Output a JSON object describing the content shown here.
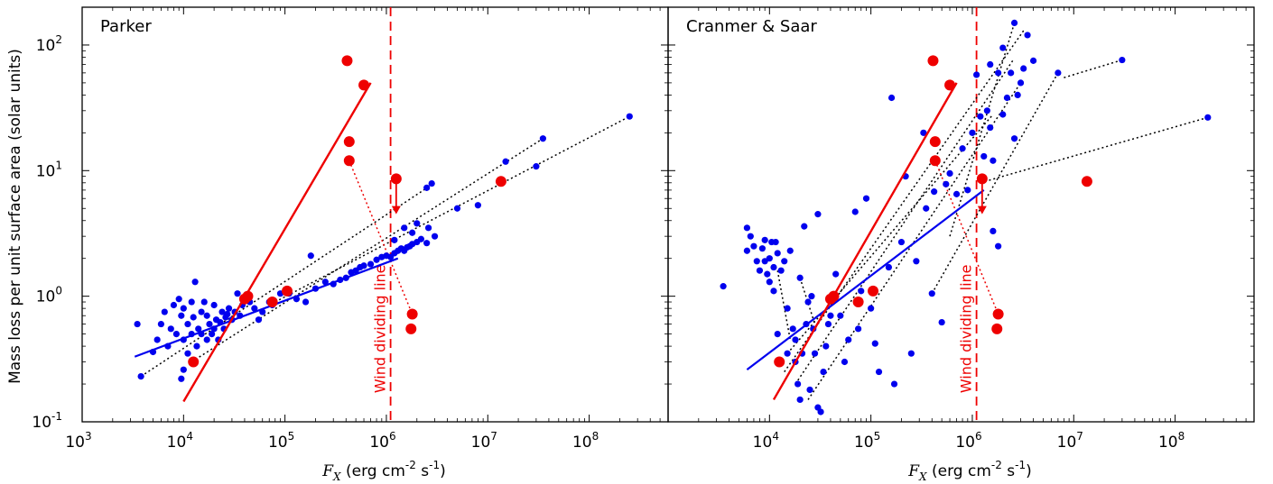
{
  "figure": {
    "ylabel": "Mass loss per unit surface area (solar units)",
    "annotation": "Wind dividing line"
  },
  "chart_data": [
    {
      "type": "scatter",
      "title": "Parker",
      "xscale": "log",
      "yscale": "log",
      "xlim": [
        1000,
        600000000
      ],
      "ylim": [
        0.1,
        200
      ],
      "xticks": [
        {
          "v": 1000,
          "m": "10",
          "e": "3"
        },
        {
          "v": 10000,
          "m": "10",
          "e": "4"
        },
        {
          "v": 100000,
          "m": "10",
          "e": "5"
        },
        {
          "v": 1000000,
          "m": "10",
          "e": "6"
        },
        {
          "v": 10000000,
          "m": "10",
          "e": "7"
        },
        {
          "v": 100000000,
          "m": "10",
          "e": "8"
        }
      ],
      "yticks": [
        {
          "v": 0.1,
          "m": "10",
          "e": "-1"
        },
        {
          "v": 1,
          "m": "10",
          "e": "0"
        },
        {
          "v": 10,
          "m": "10",
          "e": "1"
        },
        {
          "v": 100,
          "m": "10",
          "e": "2"
        }
      ],
      "xlabel": {
        "math": "F",
        "sub": "X",
        "text": " (erg cm",
        "sup1": "-2",
        "mid": " s",
        "sup2": "-1",
        "end": ")"
      },
      "ylabel": "Mass loss per unit surface area (solar units)",
      "wind_dividing_line_x": 1100000,
      "blue_points": [
        [
          3500,
          0.6
        ],
        [
          3800,
          0.23
        ],
        [
          5000,
          0.36
        ],
        [
          5500,
          0.45
        ],
        [
          6000,
          0.6
        ],
        [
          6500,
          0.75
        ],
        [
          7000,
          0.4
        ],
        [
          7500,
          0.55
        ],
        [
          8000,
          0.85
        ],
        [
          8500,
          0.5
        ],
        [
          9000,
          0.95
        ],
        [
          9500,
          0.7
        ],
        [
          9500,
          0.22
        ],
        [
          10000,
          0.26
        ],
        [
          10000,
          0.45
        ],
        [
          10000,
          0.8
        ],
        [
          11000,
          0.6
        ],
        [
          11000,
          0.35
        ],
        [
          12000,
          0.5
        ],
        [
          12000,
          0.9
        ],
        [
          12500,
          0.68
        ],
        [
          13000,
          1.3
        ],
        [
          13500,
          0.4
        ],
        [
          14000,
          0.55
        ],
        [
          15000,
          0.75
        ],
        [
          15000,
          0.5
        ],
        [
          16000,
          0.9
        ],
        [
          17000,
          0.45
        ],
        [
          17000,
          0.7
        ],
        [
          18000,
          0.6
        ],
        [
          19000,
          0.5
        ],
        [
          20000,
          0.55
        ],
        [
          20000,
          0.85
        ],
        [
          21000,
          0.65
        ],
        [
          22000,
          0.45
        ],
        [
          23000,
          0.62
        ],
        [
          24000,
          0.75
        ],
        [
          25000,
          0.55
        ],
        [
          26000,
          0.68
        ],
        [
          27000,
          0.72
        ],
        [
          28000,
          0.8
        ],
        [
          30000,
          0.65
        ],
        [
          32000,
          0.75
        ],
        [
          34000,
          1.05
        ],
        [
          36000,
          0.7
        ],
        [
          38000,
          0.85
        ],
        [
          40000,
          0.95
        ],
        [
          45000,
          0.9
        ],
        [
          50000,
          0.8
        ],
        [
          55000,
          0.65
        ],
        [
          60000,
          0.75
        ],
        [
          70000,
          0.9
        ],
        [
          75000,
          0.85
        ],
        [
          90000,
          1.05
        ],
        [
          110000,
          1.05
        ],
        [
          130000,
          0.95
        ],
        [
          160000,
          0.9
        ],
        [
          180000,
          2.1
        ],
        [
          200000,
          1.15
        ],
        [
          250000,
          1.3
        ],
        [
          300000,
          1.25
        ],
        [
          350000,
          1.35
        ],
        [
          400000,
          1.4
        ],
        [
          450000,
          1.55
        ],
        [
          500000,
          1.6
        ],
        [
          550000,
          1.7
        ],
        [
          600000,
          1.75
        ],
        [
          700000,
          1.8
        ],
        [
          800000,
          1.95
        ],
        [
          900000,
          2.05
        ],
        [
          1000000,
          2.1
        ],
        [
          1100000,
          2.05
        ],
        [
          1200000,
          2.2
        ],
        [
          1300000,
          2.3
        ],
        [
          1400000,
          2.4
        ],
        [
          1500000,
          2.3
        ],
        [
          1600000,
          2.45
        ],
        [
          1700000,
          2.5
        ],
        [
          1800000,
          2.6
        ],
        [
          2000000,
          2.7
        ],
        [
          2200000,
          2.85
        ],
        [
          2500000,
          2.65
        ],
        [
          1500000,
          3.5
        ],
        [
          1800000,
          3.2
        ],
        [
          2000000,
          3.8
        ],
        [
          1200000,
          2.8
        ],
        [
          2500000,
          7.3
        ],
        [
          2800000,
          7.9
        ],
        [
          2600000,
          3.5
        ],
        [
          3000000,
          3.0
        ],
        [
          5000000,
          5.0
        ],
        [
          8000000,
          5.3
        ],
        [
          15000000,
          11.8
        ],
        [
          14000000,
          8.2
        ],
        [
          30000000,
          10.8
        ],
        [
          35000000,
          18.0
        ],
        [
          250000000,
          27.0
        ]
      ],
      "red_points": [
        [
          12500,
          0.3
        ],
        [
          40000,
          0.95
        ],
        [
          43000,
          1.0
        ],
        [
          75000,
          0.9
        ],
        [
          105000,
          1.1
        ],
        [
          410000,
          75
        ],
        [
          600000,
          48
        ],
        [
          430000,
          17
        ],
        [
          430000,
          12
        ],
        [
          1800000,
          0.72
        ],
        [
          1750000,
          0.55
        ],
        [
          13500000,
          8.2
        ]
      ],
      "upper_limit": {
        "x": 1250000,
        "y": 8.6,
        "arrow_to": 4.5
      },
      "blue_fit": [
        [
          3300,
          0.33
        ],
        [
          1300000,
          2.0
        ]
      ],
      "red_fit": [
        [
          10000,
          0.145
        ],
        [
          700000,
          50
        ]
      ],
      "red_dotted": [
        [
          430000,
          12
        ],
        [
          1800000,
          0.72
        ]
      ],
      "black_dotted": [
        [
          [
            3800,
            0.23
          ],
          [
            3000000,
            8.0
          ]
        ],
        [
          [
            12000,
            0.3
          ],
          [
            35000000,
            18.0
          ]
        ],
        [
          [
            80000,
            0.9
          ],
          [
            250000000,
            27.0
          ]
        ]
      ]
    },
    {
      "type": "scatter",
      "title": "Cranmer & Saar",
      "xscale": "log",
      "yscale": "log",
      "xlim": [
        1000,
        600000000
      ],
      "ylim": [
        0.1,
        200
      ],
      "xticks": [
        {
          "v": 1000,
          "m": "10",
          "e": "3"
        },
        {
          "v": 10000,
          "m": "10",
          "e": "4"
        },
        {
          "v": 100000,
          "m": "10",
          "e": "5"
        },
        {
          "v": 1000000,
          "m": "10",
          "e": "6"
        },
        {
          "v": 10000000,
          "m": "10",
          "e": "7"
        },
        {
          "v": 100000000,
          "m": "10",
          "e": "8"
        }
      ],
      "xlabel": {
        "math": "F",
        "sub": "X",
        "text": " (erg cm",
        "sup1": "-2",
        "mid": " s",
        "sup2": "-1",
        "end": ")"
      },
      "wind_dividing_line_x": 1100000,
      "blue_points": [
        [
          3500,
          1.2
        ],
        [
          6000,
          3.5
        ],
        [
          6000,
          2.3
        ],
        [
          6500,
          3.0
        ],
        [
          7000,
          2.5
        ],
        [
          7500,
          1.9
        ],
        [
          8000,
          1.6
        ],
        [
          8500,
          2.4
        ],
        [
          9000,
          1.9
        ],
        [
          9000,
          2.8
        ],
        [
          9500,
          1.5
        ],
        [
          10000,
          2.0
        ],
        [
          10000,
          1.3
        ],
        [
          10500,
          2.7
        ],
        [
          11000,
          1.1
        ],
        [
          11000,
          1.7
        ],
        [
          11500,
          2.7
        ],
        [
          12000,
          2.2
        ],
        [
          12000,
          0.5
        ],
        [
          13000,
          1.6
        ],
        [
          13000,
          0.3
        ],
        [
          14000,
          1.9
        ],
        [
          15000,
          0.8
        ],
        [
          15000,
          0.35
        ],
        [
          16000,
          2.3
        ],
        [
          17000,
          0.55
        ],
        [
          18000,
          0.45
        ],
        [
          18000,
          0.3
        ],
        [
          19000,
          0.2
        ],
        [
          20000,
          1.4
        ],
        [
          20000,
          0.15
        ],
        [
          21000,
          0.35
        ],
        [
          22000,
          3.6
        ],
        [
          23000,
          0.6
        ],
        [
          24000,
          0.9
        ],
        [
          25000,
          0.18
        ],
        [
          26000,
          1.0
        ],
        [
          27000,
          0.55
        ],
        [
          28000,
          0.35
        ],
        [
          30000,
          4.5
        ],
        [
          30000,
          0.13
        ],
        [
          32000,
          0.12
        ],
        [
          34000,
          0.25
        ],
        [
          36000,
          0.4
        ],
        [
          38000,
          0.6
        ],
        [
          40000,
          0.7
        ],
        [
          45000,
          1.5
        ],
        [
          50000,
          0.7
        ],
        [
          55000,
          0.3
        ],
        [
          60000,
          0.45
        ],
        [
          70000,
          4.7
        ],
        [
          75000,
          0.55
        ],
        [
          80000,
          1.1
        ],
        [
          90000,
          6.0
        ],
        [
          100000,
          0.8
        ],
        [
          110000,
          0.42
        ],
        [
          120000,
          0.25
        ],
        [
          150000,
          1.7
        ],
        [
          160000,
          38.0
        ],
        [
          170000,
          0.2
        ],
        [
          200000,
          2.7
        ],
        [
          220000,
          9.0
        ],
        [
          250000,
          0.35
        ],
        [
          280000,
          1.9
        ],
        [
          330000,
          20.0
        ],
        [
          350000,
          5.0
        ],
        [
          400000,
          1.05
        ],
        [
          420000,
          6.8
        ],
        [
          500000,
          0.62
        ],
        [
          550000,
          7.8
        ],
        [
          600000,
          9.5
        ],
        [
          700000,
          6.5
        ],
        [
          800000,
          15.0
        ],
        [
          900000,
          7.0
        ],
        [
          1000000,
          20.0
        ],
        [
          1100000,
          58.0
        ],
        [
          1200000,
          27.0
        ],
        [
          1300000,
          13.0
        ],
        [
          1400000,
          30.0
        ],
        [
          1500000,
          22.0
        ],
        [
          1600000,
          12.0
        ],
        [
          1600000,
          3.3
        ],
        [
          1800000,
          2.5
        ],
        [
          2000000,
          28.0
        ],
        [
          2200000,
          38.0
        ],
        [
          2400000,
          60.0
        ],
        [
          2600000,
          18.0
        ],
        [
          2800000,
          40.0
        ],
        [
          3000000,
          50.0
        ],
        [
          3200000,
          65.0
        ],
        [
          3500000,
          120.0
        ],
        [
          2600000,
          150.0
        ],
        [
          2000000,
          95.0
        ],
        [
          1800000,
          60.0
        ],
        [
          1500000,
          70.0
        ],
        [
          4000000,
          75.0
        ],
        [
          7000000,
          60.0
        ],
        [
          30000000,
          76.0
        ],
        [
          210000000,
          26.5
        ]
      ],
      "red_points": [
        [
          12500,
          0.3
        ],
        [
          40000,
          0.95
        ],
        [
          43000,
          1.0
        ],
        [
          75000,
          0.9
        ],
        [
          105000,
          1.1
        ],
        [
          410000,
          75
        ],
        [
          600000,
          48
        ],
        [
          430000,
          17
        ],
        [
          430000,
          12
        ],
        [
          1800000,
          0.72
        ],
        [
          1750000,
          0.55
        ],
        [
          13500000,
          8.2
        ]
      ],
      "upper_limit": {
        "x": 1250000,
        "y": 8.6,
        "arrow_to": 4.5
      },
      "blue_fit": [
        [
          6000,
          0.26
        ],
        [
          1300000,
          7.0
        ]
      ],
      "red_fit": [
        [
          11000,
          0.15
        ],
        [
          700000,
          50
        ]
      ],
      "red_dotted": [
        [
          430000,
          12
        ],
        [
          1800000,
          0.72
        ]
      ],
      "black_dotted": [
        [
          [
            12000,
            1.6
          ],
          [
            16000,
            0.45
          ]
        ],
        [
          [
            20000,
            1.4
          ],
          [
            28000,
            0.6
          ]
        ],
        [
          [
            15000,
            0.35
          ],
          [
            1600000,
            28.0
          ]
        ],
        [
          [
            14000,
            0.25
          ],
          [
            3200000,
            130.0
          ]
        ],
        [
          [
            18000,
            0.2
          ],
          [
            2500000,
            75.0
          ]
        ],
        [
          [
            24000,
            0.15
          ],
          [
            3000000,
            50.0
          ]
        ],
        [
          [
            400000,
            1.05
          ],
          [
            7000000,
            60.0
          ]
        ],
        [
          [
            1200000,
            8.0
          ],
          [
            210000000,
            26.5
          ]
        ],
        [
          [
            8000000,
            55.0
          ],
          [
            30000000,
            76.0
          ]
        ],
        [
          [
            600000,
            3.0
          ],
          [
            2600000,
            150.0
          ]
        ]
      ]
    }
  ]
}
